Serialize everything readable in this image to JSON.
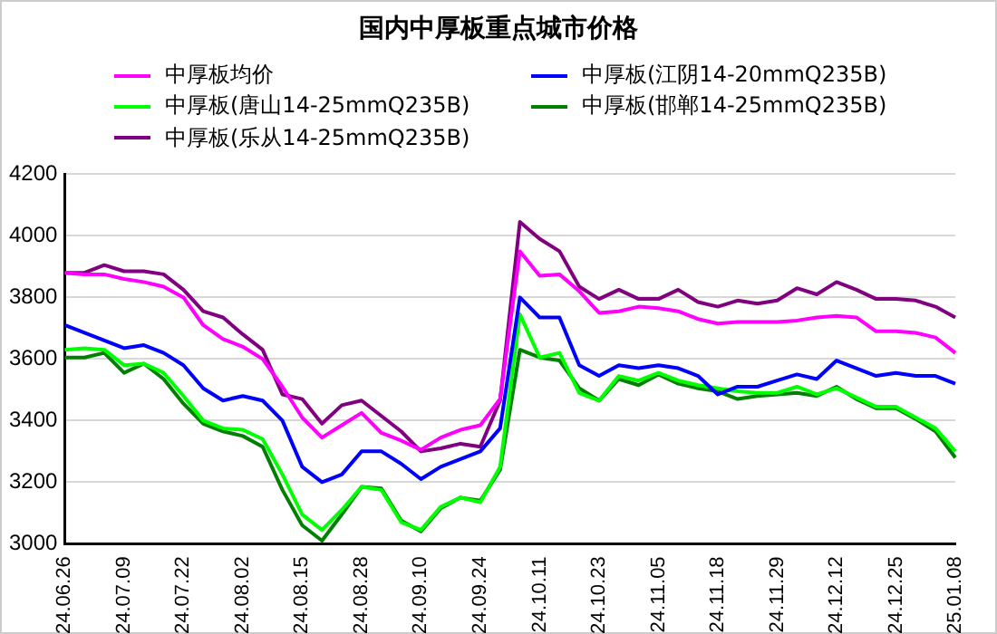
{
  "chart_data": {
    "type": "line",
    "title": "国内中厚板重点城市价格",
    "categories": [
      "24.06.26",
      null,
      null,
      "24.07.09",
      null,
      null,
      "24.07.22",
      null,
      null,
      "24.08.02",
      null,
      null,
      "24.08.15",
      null,
      null,
      "24.08.28",
      null,
      null,
      "24.09.10",
      null,
      null,
      "24.09.24",
      null,
      null,
      "24.10.11",
      null,
      null,
      "24.10.23",
      null,
      null,
      "24.11.05",
      null,
      null,
      "24.11.18",
      null,
      null,
      "24.11.29",
      null,
      null,
      "24.12.12",
      null,
      null,
      "24.12.25",
      null,
      null,
      "25.01.08"
    ],
    "series": [
      {
        "name": "中厚板均价",
        "color": "#ff00ff",
        "values": [
          3880,
          3875,
          3875,
          3860,
          3850,
          3835,
          3800,
          3710,
          3665,
          3640,
          3600,
          3510,
          3410,
          3345,
          3385,
          3425,
          3360,
          3335,
          3305,
          3345,
          3370,
          3385,
          3470,
          3950,
          3870,
          3875,
          3820,
          3750,
          3755,
          3770,
          3765,
          3755,
          3730,
          3715,
          3720,
          3720,
          3720,
          3725,
          3735,
          3740,
          3735,
          3690,
          3690,
          3685,
          3670,
          3620
        ]
      },
      {
        "name": "中厚板(江阴14-20mmQ235B)",
        "color": "#0000ff",
        "values": [
          3710,
          3685,
          3660,
          3635,
          3645,
          3620,
          3580,
          3505,
          3465,
          3480,
          3465,
          3400,
          3250,
          3200,
          3225,
          3300,
          3300,
          3260,
          3210,
          3250,
          3275,
          3300,
          3375,
          3800,
          3735,
          3735,
          3580,
          3545,
          3580,
          3570,
          3580,
          3570,
          3545,
          3485,
          3510,
          3510,
          3530,
          3550,
          3535,
          3595,
          3570,
          3545,
          3555,
          3545,
          3545,
          3520
        ]
      },
      {
        "name": "中厚板(唐山14-25mmQ235B)",
        "color": "#00ff00",
        "values": [
          3630,
          3635,
          3630,
          3580,
          3585,
          3555,
          3480,
          3400,
          3375,
          3370,
          3340,
          3225,
          3095,
          3045,
          3110,
          3185,
          3175,
          3070,
          3045,
          3120,
          3150,
          3135,
          3250,
          3745,
          3605,
          3620,
          3490,
          3465,
          3545,
          3530,
          3555,
          3530,
          3515,
          3505,
          3495,
          3490,
          3490,
          3510,
          3485,
          3505,
          3475,
          3445,
          3445,
          3410,
          3375,
          3300
        ]
      },
      {
        "name": "中厚板(邯郸14-25mmQ235B)",
        "color": "#008000",
        "values": [
          3605,
          3605,
          3620,
          3555,
          3585,
          3535,
          3455,
          3390,
          3365,
          3350,
          3315,
          3175,
          3060,
          3010,
          3095,
          3185,
          3180,
          3075,
          3040,
          3115,
          3150,
          3140,
          3240,
          3630,
          3605,
          3595,
          3505,
          3465,
          3535,
          3515,
          3550,
          3520,
          3505,
          3495,
          3470,
          3480,
          3485,
          3490,
          3480,
          3510,
          3470,
          3440,
          3440,
          3405,
          3365,
          3280
        ]
      },
      {
        "name": "中厚板(乐从14-25mmQ235B)",
        "color": "#800080",
        "values": [
          3880,
          3880,
          3905,
          3885,
          3885,
          3875,
          3825,
          3755,
          3735,
          3680,
          3630,
          3485,
          3470,
          3390,
          3450,
          3465,
          3415,
          3365,
          3300,
          3310,
          3325,
          3315,
          3465,
          4045,
          3990,
          3950,
          3835,
          3795,
          3825,
          3795,
          3795,
          3825,
          3785,
          3770,
          3790,
          3780,
          3790,
          3830,
          3810,
          3850,
          3825,
          3795,
          3795,
          3790,
          3770,
          3735
        ]
      }
    ],
    "ylim": [
      3000,
      4200
    ],
    "yticks": [
      3000,
      3200,
      3400,
      3600,
      3800,
      4000,
      4200
    ],
    "grid": "y",
    "legend": "top",
    "marker": "none"
  }
}
